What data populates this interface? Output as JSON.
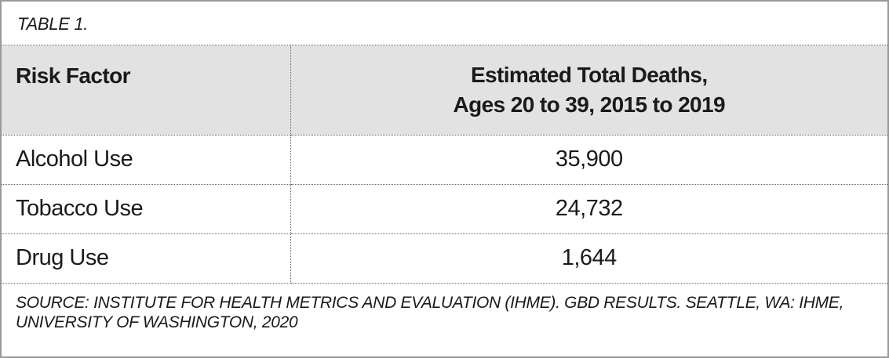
{
  "caption": "TABLE 1.",
  "headers": {
    "col1": "Risk Factor",
    "col2_line1": "Estimated Total Deaths,",
    "col2_line2": "Ages 20 to 39, 2015 to 2019"
  },
  "rows": [
    {
      "factor": "Alcohol Use",
      "deaths": "35,900"
    },
    {
      "factor": "Tobacco Use",
      "deaths": "24,732"
    },
    {
      "factor": "Drug Use",
      "deaths": "1,644"
    }
  ],
  "source_line1": "SOURCE: INSTITUTE FOR HEALTH METRICS AND EVALUATION (IHME). GBD RESULTS. SEATTLE, WA: IHME,",
  "source_line2": "UNIVERSITY OF WASHINGTON, 2020"
}
